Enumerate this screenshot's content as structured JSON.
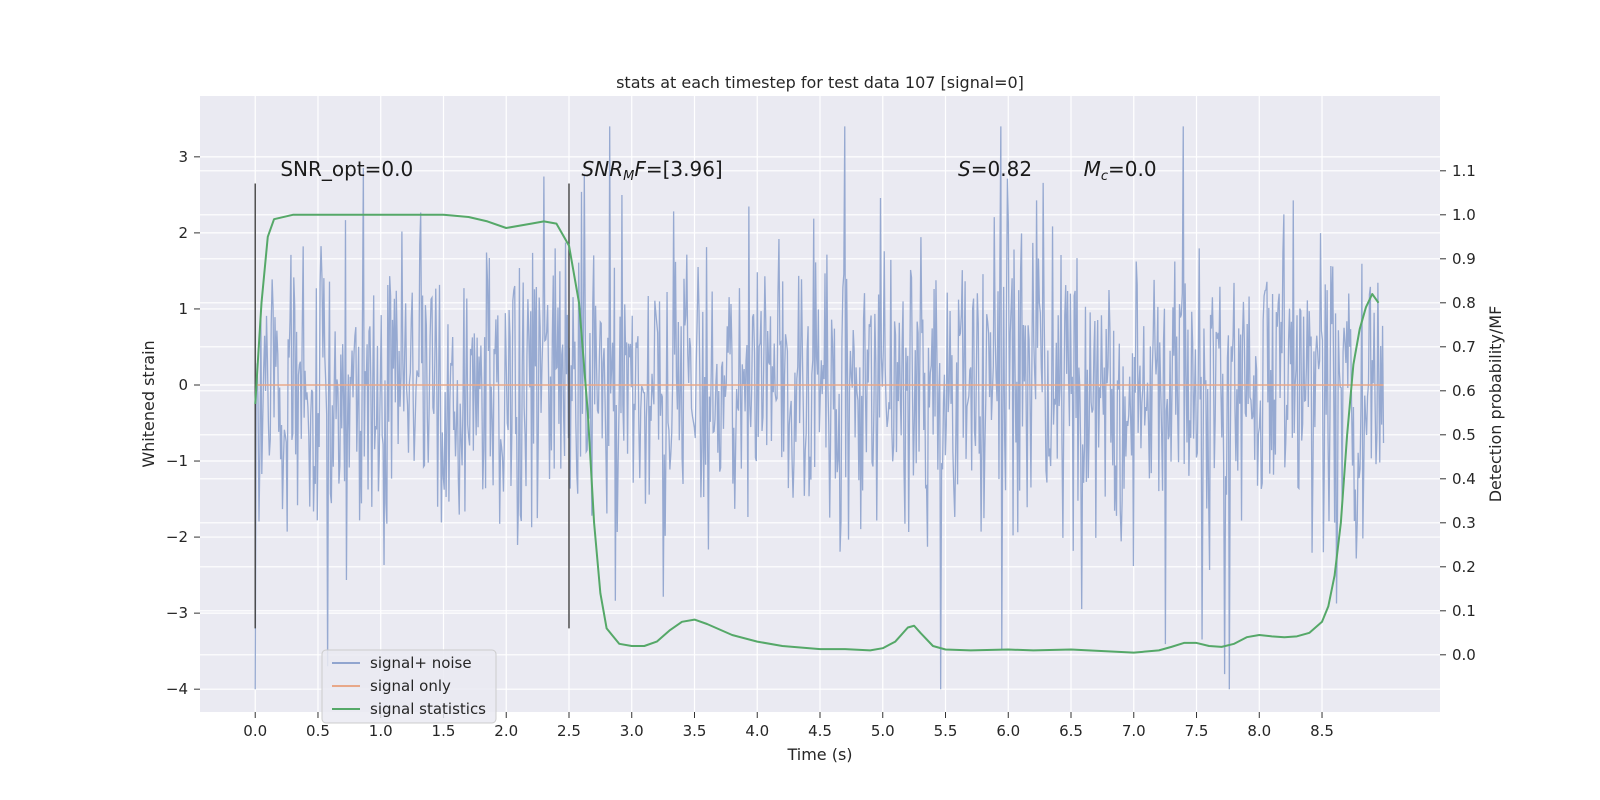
{
  "chart_data": {
    "type": "line",
    "title": "stats at each timestep for test data 107 [signal=0]",
    "xlabel": "Time (s)",
    "ylabel_left": "Whitened strain",
    "ylabel_right": "Detection probability/MF",
    "xlim": [
      -0.44,
      9.44
    ],
    "ylim_left": [
      -4.3,
      3.8
    ],
    "ylim_right": [
      -0.13,
      1.27
    ],
    "x_ticks": [
      0.0,
      0.5,
      1.0,
      1.5,
      2.0,
      2.5,
      3.0,
      3.5,
      4.0,
      4.5,
      5.0,
      5.5,
      6.0,
      6.5,
      7.0,
      7.5,
      8.0,
      8.5
    ],
    "x_tick_labels": [
      "0.0",
      "0.5",
      "1.0",
      "1.5",
      "2.0",
      "2.5",
      "3.0",
      "3.5",
      "4.0",
      "4.5",
      "5.0",
      "5.5",
      "6.0",
      "6.5",
      "7.0",
      "7.5",
      "8.0",
      "8.5"
    ],
    "y_left_ticks": [
      3,
      2,
      1,
      0,
      -1,
      -2,
      -3,
      -4
    ],
    "y_left_tick_labels": [
      "3",
      "2",
      "1",
      "0",
      "−1",
      "−2",
      "−3",
      "−4"
    ],
    "y_right_ticks": [
      1.1,
      1.0,
      0.9,
      0.8,
      0.7,
      0.6,
      0.5,
      0.4,
      0.3,
      0.2,
      0.1,
      0.0
    ],
    "y_right_tick_labels": [
      "1.1",
      "1.0",
      "0.9",
      "0.8",
      "0.7",
      "0.6",
      "0.5",
      "0.4",
      "0.3",
      "0.2",
      "0.1",
      "0.0"
    ],
    "grid": true,
    "legend_position": "lower-left",
    "series": [
      {
        "name": "signal+ noise",
        "axis": "left",
        "color": "#91a5cf",
        "x_range": [
          0.0,
          8.99
        ],
        "samples": 1200,
        "core_envelope": [
          -1.5,
          1.5
        ],
        "peak_range": [
          -4.0,
          3.4
        ]
      },
      {
        "name": "signal only",
        "axis": "left",
        "color": "#e8a889",
        "x": [
          0.0,
          8.99
        ],
        "y": [
          0.0,
          0.0
        ]
      },
      {
        "name": "signal statistics",
        "axis": "right",
        "color": "#55a868",
        "x": [
          0.0,
          0.05,
          0.1,
          0.15,
          0.3,
          0.5,
          1.0,
          1.5,
          1.7,
          1.85,
          2.0,
          2.2,
          2.3,
          2.4,
          2.5,
          2.58,
          2.65,
          2.7,
          2.75,
          2.8,
          2.9,
          3.0,
          3.1,
          3.2,
          3.3,
          3.4,
          3.5,
          3.6,
          3.8,
          4.0,
          4.2,
          4.5,
          4.7,
          4.9,
          5.0,
          5.1,
          5.2,
          5.25,
          5.3,
          5.4,
          5.5,
          5.7,
          6.0,
          6.2,
          6.5,
          7.0,
          7.2,
          7.3,
          7.4,
          7.5,
          7.6,
          7.7,
          7.8,
          7.9,
          8.0,
          8.1,
          8.2,
          8.3,
          8.4,
          8.5,
          8.55,
          8.6,
          8.65,
          8.7,
          8.75,
          8.8,
          8.85,
          8.9,
          8.95
        ],
        "y": [
          0.57,
          0.8,
          0.95,
          0.99,
          1.0,
          1.0,
          1.0,
          1.0,
          0.995,
          0.985,
          0.97,
          0.98,
          0.985,
          0.98,
          0.93,
          0.8,
          0.55,
          0.3,
          0.14,
          0.06,
          0.025,
          0.02,
          0.02,
          0.03,
          0.055,
          0.075,
          0.08,
          0.07,
          0.045,
          0.03,
          0.02,
          0.013,
          0.013,
          0.01,
          0.015,
          0.03,
          0.062,
          0.066,
          0.05,
          0.02,
          0.012,
          0.01,
          0.012,
          0.01,
          0.012,
          0.005,
          0.01,
          0.018,
          0.027,
          0.027,
          0.02,
          0.018,
          0.025,
          0.04,
          0.045,
          0.042,
          0.04,
          0.042,
          0.05,
          0.075,
          0.11,
          0.18,
          0.3,
          0.5,
          0.66,
          0.74,
          0.79,
          0.82,
          0.8
        ]
      }
    ],
    "vertical_markers": [
      {
        "x": 0.0,
        "y_range": [
          -3.2,
          2.65
        ],
        "color": "#444444"
      },
      {
        "x": 2.5,
        "y_range": [
          -3.2,
          2.65
        ],
        "color": "#444444"
      }
    ],
    "annotations": [
      {
        "id": "snr-opt",
        "x": 0.2,
        "y": 2.75,
        "text": "SNR_opt=0.0"
      },
      {
        "id": "snr-mf",
        "x": 2.6,
        "y": 2.75,
        "italic": "SNR",
        "subscript": "M",
        "italic2": "F",
        "text": "=[3.96]"
      },
      {
        "id": "s-stat",
        "x": 5.6,
        "y": 2.75,
        "italic": "S",
        "text": "=0.82"
      },
      {
        "id": "mc",
        "x": 6.6,
        "y": 2.75,
        "italic": "M",
        "subscript": "c",
        "text": "=0.0"
      }
    ]
  }
}
